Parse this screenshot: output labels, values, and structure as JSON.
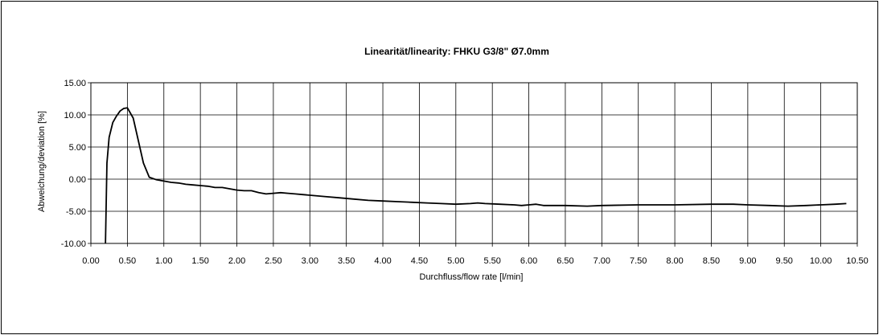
{
  "chart_data": {
    "type": "line",
    "title": "Linearität/linearity: FHKU G3/8\" Ø7.0mm",
    "xlabel": "Durchfluss/flow rate [l/min]",
    "ylabel": "Abweichung/deviation [%]",
    "xlim": [
      0,
      10.5
    ],
    "ylim": [
      -10,
      15
    ],
    "x_ticks": [
      "0.00",
      "0.50",
      "1.00",
      "1.50",
      "2.00",
      "2.50",
      "3.00",
      "3.50",
      "4.00",
      "4.50",
      "5.00",
      "5.50",
      "6.00",
      "6.50",
      "7.00",
      "7.50",
      "8.00",
      "8.50",
      "9.00",
      "9.50",
      "10.00",
      "10.50"
    ],
    "y_ticks": [
      "15.00",
      "10.00",
      "5.00",
      "0.00",
      "-5.00",
      "-10.00"
    ],
    "grid": true,
    "line_color": "#000000",
    "series": [
      {
        "x": [
          0.2,
          0.22,
          0.25,
          0.3,
          0.35,
          0.4,
          0.45,
          0.5,
          0.58,
          0.65,
          0.72,
          0.8,
          0.9,
          1.0,
          1.1,
          1.2,
          1.3,
          1.4,
          1.5,
          1.6,
          1.7,
          1.8,
          1.9,
          2.0,
          2.1,
          2.2,
          2.3,
          2.4,
          2.5,
          2.6,
          2.7,
          2.8,
          2.9,
          3.0,
          3.2,
          3.4,
          3.6,
          3.8,
          4.0,
          4.2,
          4.4,
          4.6,
          4.8,
          5.0,
          5.2,
          5.3,
          5.4,
          5.6,
          5.8,
          5.9,
          6.0,
          6.1,
          6.2,
          6.5,
          6.8,
          7.0,
          7.5,
          8.0,
          8.5,
          8.8,
          9.0,
          9.3,
          9.55,
          9.8,
          10.0,
          10.2,
          10.35
        ],
        "values": [
          -10.0,
          2.5,
          6.5,
          8.8,
          9.8,
          10.6,
          11.0,
          11.1,
          9.5,
          6.0,
          2.5,
          0.3,
          -0.1,
          -0.3,
          -0.5,
          -0.6,
          -0.8,
          -0.9,
          -1.0,
          -1.1,
          -1.3,
          -1.3,
          -1.5,
          -1.7,
          -1.8,
          -1.8,
          -2.1,
          -2.3,
          -2.2,
          -2.1,
          -2.2,
          -2.3,
          -2.4,
          -2.5,
          -2.7,
          -2.9,
          -3.1,
          -3.3,
          -3.4,
          -3.5,
          -3.6,
          -3.7,
          -3.8,
          -3.9,
          -3.8,
          -3.7,
          -3.8,
          -3.9,
          -4.0,
          -4.1,
          -4.0,
          -3.9,
          -4.1,
          -4.1,
          -4.2,
          -4.1,
          -4.0,
          -4.0,
          -3.9,
          -3.9,
          -4.0,
          -4.1,
          -4.2,
          -4.1,
          -4.0,
          -3.9,
          -3.8
        ]
      }
    ]
  }
}
